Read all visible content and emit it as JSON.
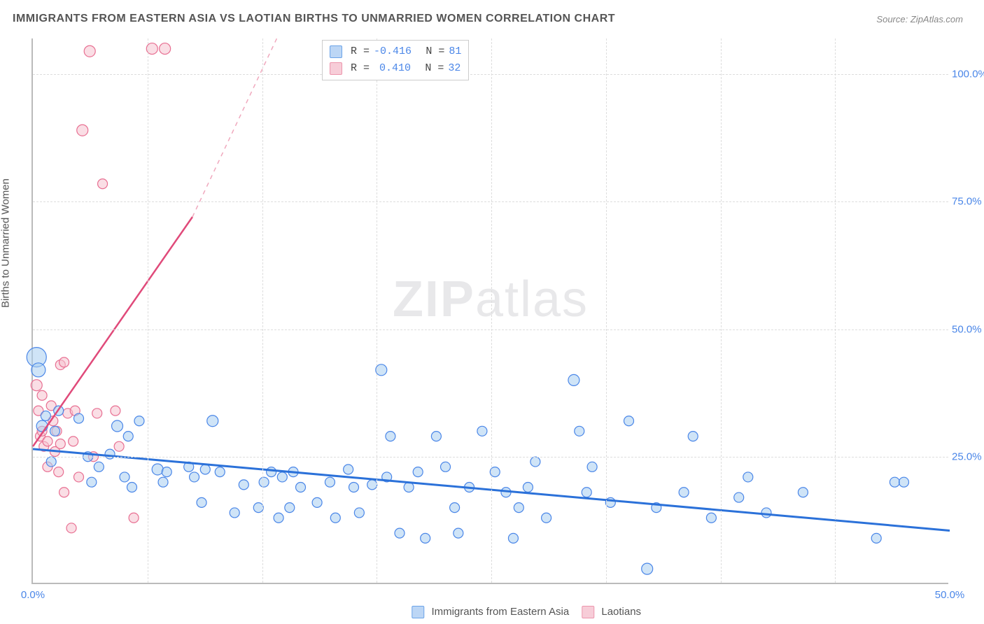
{
  "title": "IMMIGRANTS FROM EASTERN ASIA VS LAOTIAN BIRTHS TO UNMARRIED WOMEN CORRELATION CHART",
  "source_label": "Source:",
  "source_name": "ZipAtlas.com",
  "y_axis_label": "Births to Unmarried Women",
  "watermark_bold": "ZIP",
  "watermark_rest": "atlas",
  "series_a": {
    "name": "Immigrants from Eastern Asia",
    "color_fill": "#a8cdf0",
    "color_stroke": "#4a86e8",
    "swatch_fill": "#bcd6f5",
    "swatch_stroke": "#6ba3e8",
    "r_value": "-0.416",
    "n_value": "81",
    "reg_line": {
      "x1": 0,
      "y1": 26.5,
      "x2": 50,
      "y2": 10.5,
      "color": "#2b71d9",
      "width": 3
    }
  },
  "series_b": {
    "name": "Laotians",
    "color_fill": "#f6c2cf",
    "color_stroke": "#e86f92",
    "swatch_fill": "#f7cdd8",
    "swatch_stroke": "#ec95ac",
    "r_value": "0.410",
    "n_value": "32",
    "reg_line_solid": {
      "x1": 0,
      "y1": 27,
      "x2": 8.7,
      "y2": 72,
      "color": "#e04a7a",
      "width": 2.5
    },
    "reg_line_dashed": {
      "x1": 8.7,
      "y1": 72,
      "x2": 13.3,
      "y2": 107,
      "color": "#f0a8bd",
      "width": 1.5
    }
  },
  "xlim": [
    0,
    50
  ],
  "ylim": [
    0,
    107
  ],
  "x_ticks": [
    {
      "v": 0,
      "l": "0.0%",
      "c": "#4a86e8"
    },
    {
      "v": 50,
      "l": "50.0%",
      "c": "#4a86e8"
    }
  ],
  "y_ticks": [
    {
      "v": 25,
      "l": "25.0%",
      "c": "#4a86e8"
    },
    {
      "v": 50,
      "l": "50.0%",
      "c": "#4a86e8"
    },
    {
      "v": 75,
      "l": "75.0%",
      "c": "#4a86e8"
    },
    {
      "v": 100,
      "l": "100.0%",
      "c": "#4a86e8"
    }
  ],
  "grid_v_minor": [
    6.25,
    12.5,
    18.75,
    25,
    31.25,
    37.5,
    43.75
  ],
  "reg_label_r": "R =",
  "reg_label_n": "N =",
  "points_a": [
    {
      "x": 0.2,
      "y": 44.5,
      "r": 14
    },
    {
      "x": 0.3,
      "y": 42,
      "r": 10
    },
    {
      "x": 0.5,
      "y": 31,
      "r": 8
    },
    {
      "x": 0.7,
      "y": 33,
      "r": 7
    },
    {
      "x": 1.0,
      "y": 24,
      "r": 7
    },
    {
      "x": 1.2,
      "y": 30,
      "r": 7
    },
    {
      "x": 1.4,
      "y": 34,
      "r": 7
    },
    {
      "x": 2.5,
      "y": 32.5,
      "r": 7
    },
    {
      "x": 3.0,
      "y": 25,
      "r": 7
    },
    {
      "x": 3.2,
      "y": 20,
      "r": 7
    },
    {
      "x": 3.6,
      "y": 23,
      "r": 7
    },
    {
      "x": 4.2,
      "y": 25.5,
      "r": 7
    },
    {
      "x": 4.6,
      "y": 31,
      "r": 8
    },
    {
      "x": 5.0,
      "y": 21,
      "r": 7
    },
    {
      "x": 5.2,
      "y": 29,
      "r": 7
    },
    {
      "x": 5.4,
      "y": 19,
      "r": 7
    },
    {
      "x": 5.8,
      "y": 32,
      "r": 7
    },
    {
      "x": 6.8,
      "y": 22.5,
      "r": 8
    },
    {
      "x": 7.1,
      "y": 20,
      "r": 7
    },
    {
      "x": 7.3,
      "y": 22,
      "r": 7
    },
    {
      "x": 8.5,
      "y": 23,
      "r": 7
    },
    {
      "x": 8.8,
      "y": 21,
      "r": 7
    },
    {
      "x": 9.2,
      "y": 16,
      "r": 7
    },
    {
      "x": 9.4,
      "y": 22.5,
      "r": 7
    },
    {
      "x": 9.8,
      "y": 32,
      "r": 8
    },
    {
      "x": 10.2,
      "y": 22,
      "r": 7
    },
    {
      "x": 11.0,
      "y": 14,
      "r": 7
    },
    {
      "x": 11.5,
      "y": 19.5,
      "r": 7
    },
    {
      "x": 12.3,
      "y": 15,
      "r": 7
    },
    {
      "x": 12.6,
      "y": 20,
      "r": 7
    },
    {
      "x": 13.0,
      "y": 22,
      "r": 7
    },
    {
      "x": 13.4,
      "y": 13,
      "r": 7
    },
    {
      "x": 13.6,
      "y": 21,
      "r": 7
    },
    {
      "x": 14.0,
      "y": 15,
      "r": 7
    },
    {
      "x": 14.2,
      "y": 22,
      "r": 7
    },
    {
      "x": 14.6,
      "y": 19,
      "r": 7
    },
    {
      "x": 15.5,
      "y": 16,
      "r": 7
    },
    {
      "x": 16.2,
      "y": 20,
      "r": 7
    },
    {
      "x": 16.5,
      "y": 13,
      "r": 7
    },
    {
      "x": 17.2,
      "y": 22.5,
      "r": 7
    },
    {
      "x": 17.5,
      "y": 19,
      "r": 7
    },
    {
      "x": 17.8,
      "y": 14,
      "r": 7
    },
    {
      "x": 18.5,
      "y": 19.5,
      "r": 7
    },
    {
      "x": 19.0,
      "y": 42,
      "r": 8
    },
    {
      "x": 19.3,
      "y": 21,
      "r": 7
    },
    {
      "x": 19.5,
      "y": 29,
      "r": 7
    },
    {
      "x": 20.0,
      "y": 10,
      "r": 7
    },
    {
      "x": 20.5,
      "y": 19,
      "r": 7
    },
    {
      "x": 21.0,
      "y": 22,
      "r": 7
    },
    {
      "x": 21.4,
      "y": 9,
      "r": 7
    },
    {
      "x": 22.0,
      "y": 29,
      "r": 7
    },
    {
      "x": 22.5,
      "y": 23,
      "r": 7
    },
    {
      "x": 23.0,
      "y": 15,
      "r": 7
    },
    {
      "x": 23.2,
      "y": 10,
      "r": 7
    },
    {
      "x": 23.8,
      "y": 19,
      "r": 7
    },
    {
      "x": 24.5,
      "y": 30,
      "r": 7
    },
    {
      "x": 25.2,
      "y": 22,
      "r": 7
    },
    {
      "x": 25.8,
      "y": 18,
      "r": 7
    },
    {
      "x": 26.2,
      "y": 9,
      "r": 7
    },
    {
      "x": 26.5,
      "y": 15,
      "r": 7
    },
    {
      "x": 27.0,
      "y": 19,
      "r": 7
    },
    {
      "x": 27.4,
      "y": 24,
      "r": 7
    },
    {
      "x": 28.0,
      "y": 13,
      "r": 7
    },
    {
      "x": 29.5,
      "y": 40,
      "r": 8
    },
    {
      "x": 29.8,
      "y": 30,
      "r": 7
    },
    {
      "x": 30.2,
      "y": 18,
      "r": 7
    },
    {
      "x": 30.5,
      "y": 23,
      "r": 7
    },
    {
      "x": 31.5,
      "y": 16,
      "r": 7
    },
    {
      "x": 32.5,
      "y": 32,
      "r": 7
    },
    {
      "x": 33.5,
      "y": 3,
      "r": 8
    },
    {
      "x": 34.0,
      "y": 15,
      "r": 7
    },
    {
      "x": 35.5,
      "y": 18,
      "r": 7
    },
    {
      "x": 36.0,
      "y": 29,
      "r": 7
    },
    {
      "x": 37.0,
      "y": 13,
      "r": 7
    },
    {
      "x": 38.5,
      "y": 17,
      "r": 7
    },
    {
      "x": 39.0,
      "y": 21,
      "r": 7
    },
    {
      "x": 40.0,
      "y": 14,
      "r": 7
    },
    {
      "x": 42.0,
      "y": 18,
      "r": 7
    },
    {
      "x": 46.0,
      "y": 9,
      "r": 7
    },
    {
      "x": 47.0,
      "y": 20,
      "r": 7
    },
    {
      "x": 47.5,
      "y": 20,
      "r": 7
    }
  ],
  "points_b": [
    {
      "x": 0.2,
      "y": 39,
      "r": 8
    },
    {
      "x": 0.3,
      "y": 34,
      "r": 7
    },
    {
      "x": 0.4,
      "y": 29,
      "r": 7
    },
    {
      "x": 0.5,
      "y": 37,
      "r": 7
    },
    {
      "x": 0.5,
      "y": 30,
      "r": 7
    },
    {
      "x": 0.6,
      "y": 27,
      "r": 7
    },
    {
      "x": 0.8,
      "y": 28,
      "r": 7
    },
    {
      "x": 0.8,
      "y": 23,
      "r": 7
    },
    {
      "x": 1.0,
      "y": 35,
      "r": 7
    },
    {
      "x": 1.1,
      "y": 32,
      "r": 7
    },
    {
      "x": 1.2,
      "y": 26,
      "r": 7
    },
    {
      "x": 1.3,
      "y": 30,
      "r": 7
    },
    {
      "x": 1.4,
      "y": 22,
      "r": 7
    },
    {
      "x": 1.5,
      "y": 27.5,
      "r": 7
    },
    {
      "x": 1.5,
      "y": 43,
      "r": 7
    },
    {
      "x": 1.7,
      "y": 43.5,
      "r": 7
    },
    {
      "x": 1.7,
      "y": 18,
      "r": 7
    },
    {
      "x": 1.9,
      "y": 33.5,
      "r": 7
    },
    {
      "x": 2.1,
      "y": 11,
      "r": 7
    },
    {
      "x": 2.2,
      "y": 28,
      "r": 7
    },
    {
      "x": 2.3,
      "y": 34,
      "r": 7
    },
    {
      "x": 2.5,
      "y": 21,
      "r": 7
    },
    {
      "x": 2.7,
      "y": 89,
      "r": 8
    },
    {
      "x": 3.1,
      "y": 104.5,
      "r": 8
    },
    {
      "x": 3.3,
      "y": 25,
      "r": 7
    },
    {
      "x": 3.5,
      "y": 33.5,
      "r": 7
    },
    {
      "x": 3.8,
      "y": 78.5,
      "r": 7
    },
    {
      "x": 4.5,
      "y": 34,
      "r": 7
    },
    {
      "x": 4.7,
      "y": 27,
      "r": 7
    },
    {
      "x": 5.5,
      "y": 13,
      "r": 7
    },
    {
      "x": 6.5,
      "y": 105,
      "r": 8
    },
    {
      "x": 7.2,
      "y": 105,
      "r": 8
    }
  ]
}
